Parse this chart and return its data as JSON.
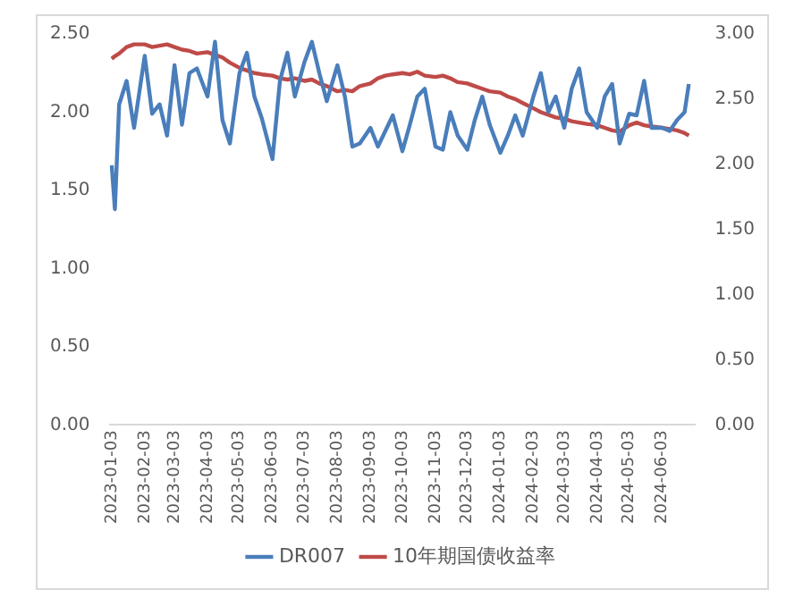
{
  "chart_data": {
    "type": "line",
    "x": [
      "2023-01-03",
      "2023-01-06",
      "2023-01-10",
      "2023-01-17",
      "2023-01-24",
      "2023-02-03",
      "2023-02-10",
      "2023-02-17",
      "2023-02-24",
      "2023-03-03",
      "2023-03-10",
      "2023-03-17",
      "2023-03-24",
      "2023-04-03",
      "2023-04-10",
      "2023-04-17",
      "2023-04-24",
      "2023-05-03",
      "2023-05-10",
      "2023-05-17",
      "2023-05-24",
      "2023-06-03",
      "2023-06-10",
      "2023-06-17",
      "2023-06-24",
      "2023-07-03",
      "2023-07-10",
      "2023-07-17",
      "2023-07-24",
      "2023-08-03",
      "2023-08-10",
      "2023-08-17",
      "2023-08-24",
      "2023-09-03",
      "2023-09-10",
      "2023-09-17",
      "2023-09-24",
      "2023-10-03",
      "2023-10-10",
      "2023-10-17",
      "2023-10-24",
      "2023-11-03",
      "2023-11-10",
      "2023-11-17",
      "2023-11-24",
      "2023-12-03",
      "2023-12-10",
      "2023-12-17",
      "2023-12-24",
      "2024-01-03",
      "2024-01-10",
      "2024-01-17",
      "2024-01-24",
      "2024-02-03",
      "2024-02-10",
      "2024-02-17",
      "2024-02-24",
      "2024-03-03",
      "2024-03-10",
      "2024-03-17",
      "2024-03-24",
      "2024-04-03",
      "2024-04-10",
      "2024-04-17",
      "2024-04-24",
      "2024-05-03",
      "2024-05-10",
      "2024-05-17",
      "2024-05-24",
      "2024-06-03",
      "2024-06-10",
      "2024-06-17",
      "2024-06-24",
      "2024-06-28"
    ],
    "series": [
      {
        "name": "DR007",
        "color": "#4a7ebb",
        "values": [
          1.66,
          1.38,
          2.05,
          2.2,
          1.9,
          2.36,
          1.99,
          2.05,
          1.85,
          2.3,
          1.92,
          2.25,
          2.28,
          2.1,
          2.45,
          1.95,
          1.8,
          2.25,
          2.38,
          2.1,
          1.96,
          1.7,
          2.2,
          2.38,
          2.1,
          2.32,
          2.45,
          2.25,
          2.07,
          2.3,
          2.1,
          1.78,
          1.8,
          1.9,
          1.78,
          1.88,
          1.98,
          1.75,
          1.92,
          2.1,
          2.15,
          1.78,
          1.76,
          2.0,
          1.85,
          1.76,
          1.95,
          2.1,
          1.92,
          1.74,
          1.85,
          1.98,
          1.85,
          2.1,
          2.25,
          2.0,
          2.1,
          1.9,
          2.15,
          2.28,
          2.0,
          1.9,
          2.1,
          2.18,
          1.8,
          1.99,
          1.98,
          2.2,
          1.9,
          1.9,
          1.88,
          1.95,
          2.0,
          2.18
        ]
      },
      {
        "name": "10年期国债收益率",
        "color": "#be4b48",
        "axis": "y2",
        "values": [
          2.81,
          2.83,
          2.85,
          2.9,
          2.92,
          2.92,
          2.9,
          2.91,
          2.92,
          2.9,
          2.88,
          2.87,
          2.85,
          2.86,
          2.84,
          2.82,
          2.78,
          2.74,
          2.72,
          2.7,
          2.69,
          2.68,
          2.66,
          2.65,
          2.66,
          2.64,
          2.65,
          2.62,
          2.6,
          2.56,
          2.57,
          2.56,
          2.6,
          2.62,
          2.66,
          2.68,
          2.69,
          2.7,
          2.69,
          2.71,
          2.68,
          2.67,
          2.68,
          2.66,
          2.63,
          2.62,
          2.6,
          2.58,
          2.56,
          2.55,
          2.52,
          2.5,
          2.47,
          2.43,
          2.4,
          2.38,
          2.36,
          2.35,
          2.33,
          2.32,
          2.31,
          2.3,
          2.28,
          2.26,
          2.25,
          2.3,
          2.32,
          2.3,
          2.29,
          2.28,
          2.27,
          2.26,
          2.24,
          2.22
        ]
      }
    ],
    "xlim": [
      "2023-01-01",
      "2024-07-04"
    ],
    "xticks": [
      "2023-01-03",
      "2023-02-03",
      "2023-03-03",
      "2023-04-03",
      "2023-05-03",
      "2023-06-03",
      "2023-07-03",
      "2023-08-03",
      "2023-09-03",
      "2023-10-03",
      "2023-11-03",
      "2023-12-03",
      "2024-01-03",
      "2024-02-03",
      "2024-03-03",
      "2024-04-03",
      "2024-05-03",
      "2024-06-03"
    ],
    "ylim": [
      0,
      2.5
    ],
    "yticks": [
      {
        "value": 0,
        "label": "0.00"
      },
      {
        "value": 0.5,
        "label": "0.50"
      },
      {
        "value": 1,
        "label": "1.00"
      },
      {
        "value": 1.5,
        "label": "1.50"
      },
      {
        "value": 2,
        "label": "2.00"
      },
      {
        "value": 2.5,
        "label": "2.50"
      }
    ],
    "y2lim": [
      0,
      3
    ],
    "y2ticks": [
      {
        "value": 0,
        "label": "0.00"
      },
      {
        "value": 0.5,
        "label": "0.50"
      },
      {
        "value": 1,
        "label": "1.00"
      },
      {
        "value": 1.5,
        "label": "1.50"
      },
      {
        "value": 2,
        "label": "2.00"
      },
      {
        "value": 2.5,
        "label": "2.50"
      },
      {
        "value": 3,
        "label": "3.00"
      }
    ],
    "grid": false,
    "legend": "bottom",
    "marker": "none",
    "line_style": "solid"
  }
}
